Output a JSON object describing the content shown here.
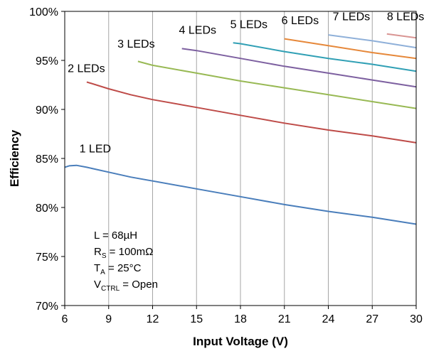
{
  "chart_data": {
    "type": "line",
    "title": "",
    "xlabel": "Input Voltage (V)",
    "ylabel": "Efficiency",
    "xlim": [
      6,
      30
    ],
    "ylim": [
      70,
      100
    ],
    "x_ticks": [
      6,
      9,
      12,
      15,
      18,
      21,
      24,
      27,
      30
    ],
    "x_tick_labels": [
      "6",
      "9",
      "12",
      "15",
      "18",
      "21",
      "24",
      "27",
      "30"
    ],
    "y_ticks": [
      70,
      75,
      80,
      85,
      90,
      95,
      100
    ],
    "y_tick_labels": [
      "70%",
      "75%",
      "80%",
      "85%",
      "90%",
      "95%",
      "100%"
    ],
    "grid": "vertical",
    "legend": "inline labels",
    "conditions": [
      {
        "main": "L = 68µH",
        "sub": "",
        "rest": ""
      },
      {
        "main": "R",
        "sub": "S",
        "rest": " = 100mΩ"
      },
      {
        "main": "T",
        "sub": "A",
        "rest": " = 25°C"
      },
      {
        "main": "V",
        "sub": "CTRL",
        "rest": " = Open"
      }
    ],
    "series": [
      {
        "name": "1 LED",
        "color": "#4a7ebb",
        "label_pos": [
          7.0,
          85.6
        ],
        "points": [
          [
            6,
            84.1
          ],
          [
            6.3,
            84.25
          ],
          [
            6.8,
            84.3
          ],
          [
            7.5,
            84.1
          ],
          [
            9,
            83.6
          ],
          [
            10.5,
            83.1
          ],
          [
            12,
            82.7
          ],
          [
            15,
            81.9
          ],
          [
            18,
            81.1
          ],
          [
            21,
            80.3
          ],
          [
            24,
            79.6
          ],
          [
            27,
            79.0
          ],
          [
            30,
            78.3
          ]
        ]
      },
      {
        "name": "2 LEDs",
        "color": "#be4b48",
        "label_pos": [
          6.2,
          93.8
        ],
        "points": [
          [
            7.5,
            92.8
          ],
          [
            9,
            92.1
          ],
          [
            10.5,
            91.5
          ],
          [
            12,
            91.0
          ],
          [
            15,
            90.2
          ],
          [
            18,
            89.4
          ],
          [
            21,
            88.6
          ],
          [
            24,
            87.9
          ],
          [
            27,
            87.3
          ],
          [
            30,
            86.6
          ]
        ]
      },
      {
        "name": "3 LEDs",
        "color": "#98b954",
        "label_pos": [
          9.6,
          96.3
        ],
        "points": [
          [
            11,
            94.9
          ],
          [
            12,
            94.5
          ],
          [
            15,
            93.7
          ],
          [
            18,
            92.9
          ],
          [
            21,
            92.2
          ],
          [
            24,
            91.5
          ],
          [
            27,
            90.8
          ],
          [
            30,
            90.1
          ]
        ]
      },
      {
        "name": "4 LEDs",
        "color": "#7d60a0",
        "label_pos": [
          13.8,
          97.7
        ],
        "points": [
          [
            14,
            96.2
          ],
          [
            15,
            96.0
          ],
          [
            18,
            95.2
          ],
          [
            21,
            94.4
          ],
          [
            24,
            93.7
          ],
          [
            27,
            93.0
          ],
          [
            30,
            92.3
          ]
        ]
      },
      {
        "name": "5 LEDs",
        "color": "#31a0b5",
        "label_pos": [
          17.3,
          98.3
        ],
        "points": [
          [
            17.5,
            96.8
          ],
          [
            18,
            96.7
          ],
          [
            21,
            95.9
          ],
          [
            24,
            95.2
          ],
          [
            27,
            94.6
          ],
          [
            30,
            93.9
          ]
        ]
      },
      {
        "name": "6 LEDs",
        "color": "#e6883a",
        "label_pos": [
          20.8,
          98.7
        ],
        "points": [
          [
            21,
            97.2
          ],
          [
            24,
            96.5
          ],
          [
            27,
            95.8
          ],
          [
            30,
            95.2
          ]
        ]
      },
      {
        "name": "7 LEDs",
        "color": "#8fb0d9",
        "label_pos": [
          24.3,
          99.1
        ],
        "points": [
          [
            24,
            97.6
          ],
          [
            27,
            97.0
          ],
          [
            30,
            96.3
          ]
        ]
      },
      {
        "name": "8 LEDs",
        "color": "#d99593",
        "label_pos": [
          28.0,
          99.1
        ],
        "points": [
          [
            28,
            97.7
          ],
          [
            29,
            97.5
          ],
          [
            30,
            97.3
          ]
        ]
      }
    ]
  }
}
